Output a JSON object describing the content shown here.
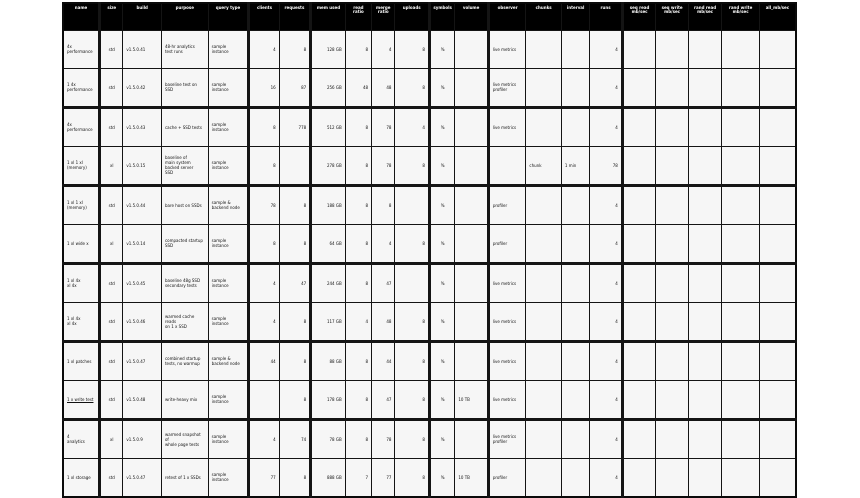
{
  "colors": {
    "header_bg": "#000000",
    "header_text": "#ffffff",
    "cell_bg": "#f6f6f6",
    "grid": "#141414",
    "page_bg": "#ffffff"
  },
  "table": {
    "columns": [
      "name",
      "size",
      "build",
      "purpose",
      "query type",
      "clients",
      "requests",
      "mem used",
      "read\nratio",
      "merge\nratio",
      "uploads",
      "symbols",
      "volume",
      "observer",
      "chunks",
      "interval",
      "runs",
      "seq read\nmb/sec",
      "seq write\nmb/sec",
      "rand read\nmb/sec",
      "rand write\nmb/sec",
      "all_mb/sec"
    ],
    "rows": [
      [
        "4x\nperformance",
        "std",
        "v1.5.0.41",
        "48-hr analytics\ntest runs",
        "sample instance",
        "4",
        "8",
        "128 GB",
        "8",
        "4",
        "8",
        "%",
        "",
        "live metrics",
        "",
        "",
        "4",
        "",
        "",
        "",
        "",
        ""
      ],
      [
        "1 4x\nperformance",
        "std",
        "v1.5.0.42",
        "baseline test on\nSSD",
        "sample instance",
        "16",
        "87",
        "256 GB",
        "48",
        "48",
        "8",
        "%",
        "",
        "live metrics\nprofiler",
        "",
        "",
        "4",
        "",
        "",
        "",
        "",
        ""
      ],
      [
        "4x\nperformance",
        "std",
        "v1.5.0.43",
        "cache + SSD tests",
        "sample instance",
        "8",
        "778",
        "512 GB",
        "8",
        "78",
        "4",
        "%",
        "",
        "live metrics",
        "",
        "",
        "4",
        "",
        "",
        "",
        "",
        ""
      ],
      [
        "1 xl 1 xl\n(memory)",
        "xl",
        "v1.5.0.15",
        "baseline of\nmain system\nbacked server\nSSD",
        "sample instance",
        "8",
        "",
        "278 GB",
        "8",
        "78",
        "8",
        "%",
        "",
        "",
        "chunk",
        "1 min",
        "78",
        "",
        "",
        "",
        "",
        ""
      ],
      [
        "1 xl 1 xl\n(memory)",
        "std",
        "v1.5.0.44",
        "bare host on SSDs",
        "sample &\nbackend node",
        "78",
        "8",
        "188 GB",
        "8",
        "8",
        "",
        "%",
        "",
        "profiler",
        "",
        "",
        "4",
        "",
        "",
        "",
        "",
        ""
      ],
      [
        "1 xl wide x",
        "xl",
        "v1.5.0.14",
        "compacted startup\nSSD",
        "sample instance",
        "8",
        "8",
        "64 GB",
        "8",
        "4",
        "8",
        "%",
        "",
        "profiler",
        "",
        "",
        "4",
        "",
        "",
        "",
        "",
        ""
      ],
      [
        "1 xl 4x\nxl 4x",
        "std",
        "v1.5.0.45",
        "baseline 48g SSD\nsecondary tests",
        "sample instance",
        "4",
        "47",
        "244 GB",
        "8",
        "47",
        "",
        "%",
        "",
        "live metrics",
        "",
        "",
        "4",
        "",
        "",
        "",
        "",
        ""
      ],
      [
        "1 xl 4x\nxl 4x",
        "std",
        "v1.5.0.46",
        "warmed cache reads\non 1 x SSD",
        "sample instance",
        "4",
        "8",
        "117 GB",
        "4",
        "48",
        "8",
        "%",
        "",
        "live metrics",
        "",
        "",
        "4",
        "",
        "",
        "",
        "",
        ""
      ],
      [
        "1 xl patches",
        "std",
        "v1.5.0.47",
        "combined startup\ntests, no warmup",
        "sample &\nbackend node",
        "44",
        "8",
        "88 GB",
        "8",
        "44",
        "8",
        "%",
        "",
        "live metrics",
        "",
        "",
        "4",
        "",
        "",
        "",
        "",
        ""
      ],
      [
        "1 x write test",
        "std",
        "v1.5.0.48",
        "write-heavy mix",
        "sample instance",
        "",
        "8",
        "178 GB",
        "8",
        "47",
        "8",
        "%",
        "10 TB",
        "live metrics",
        "",
        "",
        "4",
        "",
        "",
        "",
        "",
        ""
      ],
      [
        "4\nanalytics",
        "xl",
        "v1.5.0.9",
        "warmed snapshot of\nwhole page tests",
        "sample instance",
        "4",
        "74",
        "78 GB",
        "8",
        "78",
        "8",
        "%",
        "",
        "live metrics\nprofiler",
        "",
        "",
        "4",
        "",
        "",
        "",
        "",
        ""
      ],
      [
        "1 xl storage",
        "std",
        "v1.5.0.47",
        "retest of 1 x SSDs",
        "sample instance",
        "77",
        "8",
        "888 GB",
        "7",
        "77",
        "8",
        "%",
        "10 TB",
        "profiler",
        "",
        "",
        "4",
        "",
        "",
        "",
        "",
        ""
      ]
    ],
    "link_cell": {
      "row_index": 9,
      "col_index": 0
    }
  }
}
